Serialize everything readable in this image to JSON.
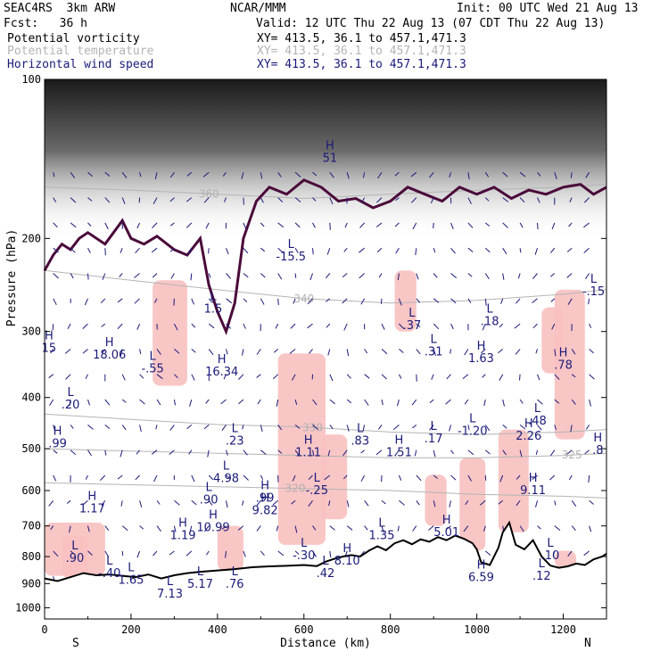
{
  "header": {
    "project": "SEAC4RS  3km ARW",
    "center": "NCAR/MMM",
    "init": "Init: 00 UTC Wed 21 Aug 13",
    "fcst": "Fcst:   36 h",
    "valid": "Valid: 12 UTC Thu 22 Aug 13 (07 CDT Thu 22 Aug 13)",
    "fields": [
      {
        "name": "Potential vorticity",
        "xy": "XY= 413.5, 36.1 to 457.1,471.3",
        "color": "#000000"
      },
      {
        "name": "Potential temperature",
        "xy": "XY= 413.5, 36.1 to 457.1,471.3",
        "color": "#b4b4b4"
      },
      {
        "name": "Horizontal wind speed",
        "xy": "XY= 413.5, 36.1 to 457.1,471.3",
        "color": "#1a1a7a"
      }
    ]
  },
  "chart_data": {
    "type": "cross-section",
    "xlabel": "Distance (km)",
    "ylabel": "Pressure (hPa)",
    "xlim": [
      0,
      1300
    ],
    "ylim": [
      100,
      1050
    ],
    "y_scale": "log",
    "xticks": [
      0,
      200,
      400,
      600,
      800,
      1000,
      1200
    ],
    "yticks": [
      100,
      200,
      300,
      400,
      500,
      600,
      700,
      800,
      900,
      1000
    ],
    "end_labels": {
      "left": "S",
      "right": "N"
    },
    "colors": {
      "pv_fill": "#f8c0c0",
      "pv_contour": "#4a0a3a",
      "theta": "#b4b4b4",
      "wind": "#1a1a7a",
      "terrain": "#000000"
    },
    "terrain": [
      [
        0,
        880
      ],
      [
        30,
        890
      ],
      [
        60,
        875
      ],
      [
        90,
        860
      ],
      [
        120,
        868
      ],
      [
        150,
        865
      ],
      [
        180,
        870
      ],
      [
        210,
        875
      ],
      [
        240,
        865
      ],
      [
        270,
        880
      ],
      [
        300,
        868
      ],
      [
        330,
        860
      ],
      [
        360,
        855
      ],
      [
        400,
        850
      ],
      [
        440,
        845
      ],
      [
        480,
        838
      ],
      [
        520,
        835
      ],
      [
        560,
        833
      ],
      [
        600,
        830
      ],
      [
        630,
        834
      ],
      [
        650,
        818
      ],
      [
        670,
        808
      ],
      [
        690,
        800
      ],
      [
        710,
        795
      ],
      [
        730,
        800
      ],
      [
        750,
        780
      ],
      [
        770,
        765
      ],
      [
        790,
        778
      ],
      [
        810,
        755
      ],
      [
        830,
        745
      ],
      [
        850,
        758
      ],
      [
        870,
        742
      ],
      [
        890,
        750
      ],
      [
        910,
        735
      ],
      [
        930,
        745
      ],
      [
        950,
        730
      ],
      [
        970,
        740
      ],
      [
        990,
        755
      ],
      [
        1000,
        775
      ],
      [
        1010,
        820
      ],
      [
        1030,
        830
      ],
      [
        1050,
        770
      ],
      [
        1060,
        720
      ],
      [
        1075,
        690
      ],
      [
        1090,
        760
      ],
      [
        1110,
        775
      ],
      [
        1130,
        745
      ],
      [
        1150,
        800
      ],
      [
        1170,
        832
      ],
      [
        1190,
        840
      ],
      [
        1210,
        835
      ],
      [
        1230,
        825
      ],
      [
        1250,
        830
      ],
      [
        1270,
        810
      ],
      [
        1290,
        800
      ],
      [
        1300,
        790
      ]
    ],
    "pv_tropopause": [
      [
        0,
        230
      ],
      [
        20,
        215
      ],
      [
        40,
        205
      ],
      [
        60,
        210
      ],
      [
        80,
        200
      ],
      [
        100,
        195
      ],
      [
        140,
        205
      ],
      [
        180,
        185
      ],
      [
        200,
        200
      ],
      [
        230,
        205
      ],
      [
        260,
        198
      ],
      [
        300,
        210
      ],
      [
        330,
        215
      ],
      [
        360,
        200
      ],
      [
        380,
        245
      ],
      [
        400,
        275
      ],
      [
        420,
        300
      ],
      [
        440,
        265
      ],
      [
        460,
        200
      ],
      [
        490,
        170
      ],
      [
        520,
        160
      ],
      [
        560,
        165
      ],
      [
        600,
        155
      ],
      [
        640,
        160
      ],
      [
        680,
        170
      ],
      [
        720,
        168
      ],
      [
        760,
        175
      ],
      [
        800,
        170
      ],
      [
        840,
        160
      ],
      [
        880,
        165
      ],
      [
        920,
        170
      ],
      [
        960,
        160
      ],
      [
        1000,
        165
      ],
      [
        1040,
        160
      ],
      [
        1080,
        168
      ],
      [
        1120,
        162
      ],
      [
        1160,
        165
      ],
      [
        1200,
        160
      ],
      [
        1240,
        158
      ],
      [
        1270,
        165
      ],
      [
        1300,
        160
      ]
    ],
    "theta_contours": [
      {
        "label": "340",
        "label_x": 600,
        "points": [
          [
            0,
            230
          ],
          [
            200,
            240
          ],
          [
            400,
            250
          ],
          [
            600,
            260
          ],
          [
            800,
            265
          ],
          [
            1000,
            262
          ],
          [
            1200,
            255
          ],
          [
            1300,
            250
          ]
        ]
      },
      {
        "label": "330",
        "label_x": 620,
        "points": [
          [
            0,
            430
          ],
          [
            200,
            440
          ],
          [
            400,
            450
          ],
          [
            600,
            455
          ],
          [
            800,
            465
          ],
          [
            1000,
            470
          ],
          [
            1200,
            465
          ],
          [
            1300,
            460
          ]
        ]
      },
      {
        "label": "325",
        "label_x": 1220,
        "points": [
          [
            0,
            500
          ],
          [
            200,
            505
          ],
          [
            400,
            510
          ],
          [
            600,
            515
          ],
          [
            800,
            520
          ],
          [
            1000,
            520
          ],
          [
            1200,
            515
          ],
          [
            1300,
            510
          ]
        ]
      },
      {
        "label": "320",
        "label_x": 580,
        "points": [
          [
            0,
            580
          ],
          [
            200,
            585
          ],
          [
            400,
            590
          ],
          [
            600,
            595
          ],
          [
            800,
            600
          ],
          [
            1000,
            610
          ],
          [
            1200,
            615
          ],
          [
            1300,
            620
          ]
        ]
      },
      {
        "label": "360",
        "label_x": 380,
        "points": [
          [
            0,
            160
          ],
          [
            200,
            162
          ],
          [
            400,
            165
          ],
          [
            600,
            168
          ],
          [
            800,
            165
          ],
          [
            1000,
            162
          ],
          [
            1200,
            160
          ],
          [
            1300,
            158
          ]
        ]
      }
    ],
    "pv_regions": [
      {
        "x0": 250,
        "x1": 330,
        "p0": 240,
        "p1": 380
      },
      {
        "x0": 540,
        "x1": 650,
        "p0": 330,
        "p1": 760
      },
      {
        "x0": 640,
        "x1": 700,
        "p0": 470,
        "p1": 680
      },
      {
        "x0": 880,
        "x1": 930,
        "p0": 560,
        "p1": 700
      },
      {
        "x0": 960,
        "x1": 1020,
        "p0": 520,
        "p1": 780
      },
      {
        "x0": 1050,
        "x1": 1120,
        "p0": 460,
        "p1": 720
      },
      {
        "x0": 1180,
        "x1": 1250,
        "p0": 250,
        "p1": 480
      },
      {
        "x0": 0,
        "x1": 140,
        "p0": 690,
        "p1": 870
      },
      {
        "x0": 40,
        "x1": 100,
        "p0": 730,
        "p1": 880
      },
      {
        "x0": 400,
        "x1": 460,
        "p0": 700,
        "p1": 850
      },
      {
        "x0": 1180,
        "x1": 1230,
        "p0": 780,
        "p1": 840
      },
      {
        "x0": 810,
        "x1": 860,
        "p0": 230,
        "p1": 300
      },
      {
        "x0": 1150,
        "x1": 1200,
        "p0": 270,
        "p1": 360
      }
    ],
    "hl_labels": [
      {
        "letter": "H",
        "value": "15",
        "x": 10,
        "p": 320
      },
      {
        "letter": "H",
        "value": "18.06",
        "x": 150,
        "p": 330
      },
      {
        "letter": "L",
        "value": "-.55",
        "x": 250,
        "p": 350
      },
      {
        "letter": "H",
        "value": "16.34",
        "x": 410,
        "p": 355
      },
      {
        "letter": "L",
        "value": "1.5",
        "x": 390,
        "p": 270
      },
      {
        "letter": "L",
        "value": ".20",
        "x": 60,
        "p": 410
      },
      {
        "letter": "H",
        "value": ".99",
        "x": 30,
        "p": 485
      },
      {
        "letter": "L",
        "value": ".23",
        "x": 440,
        "p": 480
      },
      {
        "letter": "H",
        "value": "1.11",
        "x": 610,
        "p": 505
      },
      {
        "letter": "L",
        "value": ".83",
        "x": 730,
        "p": 480
      },
      {
        "letter": "H",
        "value": "1.51",
        "x": 820,
        "p": 505
      },
      {
        "letter": "L",
        "value": ".17",
        "x": 900,
        "p": 475
      },
      {
        "letter": "L",
        "value": "-1.20",
        "x": 990,
        "p": 460
      },
      {
        "letter": "H",
        "value": "2.26",
        "x": 1120,
        "p": 470
      },
      {
        "letter": "L",
        "value": ".48",
        "x": 1140,
        "p": 440
      },
      {
        "letter": "H",
        "value": ".8",
        "x": 1280,
        "p": 500
      },
      {
        "letter": "L",
        "value": "4.98",
        "x": 420,
        "p": 565
      },
      {
        "letter": "L",
        "value": ".90",
        "x": 380,
        "p": 620
      },
      {
        "letter": "H",
        "value": ".99",
        "x": 510,
        "p": 615
      },
      {
        "letter": "L",
        "value": "-.25",
        "x": 630,
        "p": 595
      },
      {
        "letter": "H",
        "value": "9.82",
        "x": 510,
        "p": 650
      },
      {
        "letter": "H",
        "value": "1.17",
        "x": 110,
        "p": 645
      },
      {
        "letter": "H",
        "value": "9.11",
        "x": 1130,
        "p": 595
      },
      {
        "letter": "H",
        "value": "10.99",
        "x": 390,
        "p": 700
      },
      {
        "letter": "H",
        "value": "1.19",
        "x": 320,
        "p": 725
      },
      {
        "letter": "L",
        "value": "1.35",
        "x": 780,
        "p": 725
      },
      {
        "letter": "H",
        "value": "5.01",
        "x": 930,
        "p": 715
      },
      {
        "letter": "L",
        "value": ".90",
        "x": 70,
        "p": 800
      },
      {
        "letter": "L",
        "value": "-.40",
        "x": 150,
        "p": 855
      },
      {
        "letter": "L",
        "value": "1.65",
        "x": 200,
        "p": 880
      },
      {
        "letter": "L",
        "value": "-.30",
        "x": 600,
        "p": 790
      },
      {
        "letter": "H",
        "value": "8.10",
        "x": 700,
        "p": 810
      },
      {
        "letter": "L",
        "value": ".42",
        "x": 650,
        "p": 855
      },
      {
        "letter": "L",
        "value": ".10",
        "x": 1170,
        "p": 790
      },
      {
        "letter": "H",
        "value": "6.59",
        "x": 1010,
        "p": 870
      },
      {
        "letter": "L",
        "value": ".12",
        "x": 1150,
        "p": 865
      },
      {
        "letter": "L",
        "value": "5.17",
        "x": 360,
        "p": 895
      },
      {
        "letter": "L",
        "value": ".76",
        "x": 440,
        "p": 895
      },
      {
        "letter": "L",
        "value": "7.13",
        "x": 290,
        "p": 935
      },
      {
        "letter": "L",
        "value": ".37",
        "x": 850,
        "p": 290
      },
      {
        "letter": "L",
        "value": ".31",
        "x": 900,
        "p": 325
      },
      {
        "letter": "H",
        "value": "1.63",
        "x": 1010,
        "p": 335
      },
      {
        "letter": "L",
        "value": ".18",
        "x": 1030,
        "p": 285
      },
      {
        "letter": "H",
        "value": ".78",
        "x": 1200,
        "p": 345
      },
      {
        "letter": "L",
        "value": "-.15",
        "x": 1270,
        "p": 250
      },
      {
        "letter": "L",
        "value": "-15.5",
        "x": 570,
        "p": 215
      },
      {
        "letter": "H",
        "value": "51",
        "x": 660,
        "p": 140
      }
    ]
  }
}
